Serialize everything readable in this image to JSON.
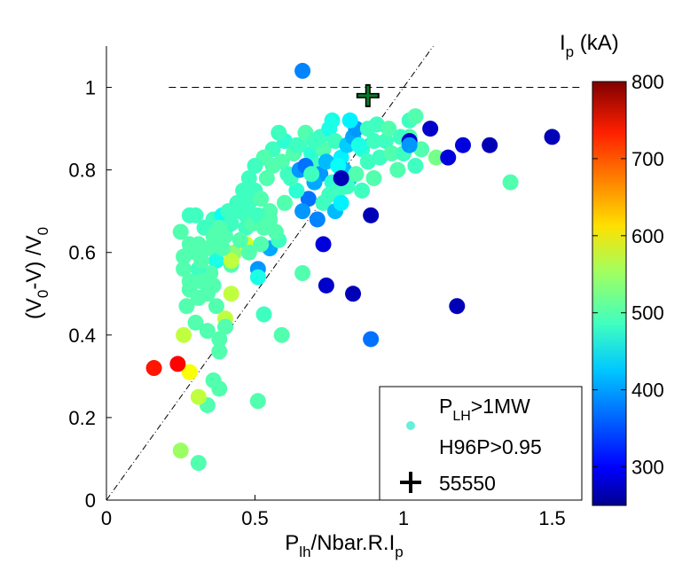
{
  "chart_data": {
    "type": "scatter",
    "xlabel": {
      "base": "P",
      "sub1": "lh",
      "mid": "/Nbar.R.I",
      "sub2": "p"
    },
    "ylabel": {
      "p1": "(V",
      "s1": "0",
      "p2": "-V) /V",
      "s2": "0"
    },
    "xlim": [
      0,
      1.6
    ],
    "ylim": [
      0,
      1.1
    ],
    "xticks": [
      0,
      0.5,
      1,
      1.5
    ],
    "xtick_labels": [
      "0",
      "0.5",
      "1",
      "1.5"
    ],
    "yticks": [
      0,
      0.2,
      0.4,
      0.6,
      0.8,
      1
    ],
    "ytick_labels": [
      "0",
      "0.2",
      "0.4",
      "0.6",
      "0.8",
      "1"
    ],
    "grid": false,
    "colorbar": {
      "title_base": "I",
      "title_sub": "p",
      "title_unit": " (kA)",
      "range": [
        250,
        800
      ],
      "ticks": [
        300,
        400,
        500,
        600,
        700,
        800
      ],
      "tick_labels": [
        "300",
        "400",
        "500",
        "600",
        "700",
        "800"
      ],
      "colormap": "jet"
    },
    "reference_lines": [
      {
        "type": "horizontal",
        "y": 1.0,
        "x_from": 0.21,
        "style": "dashed"
      },
      {
        "type": "diagonal",
        "from": [
          0,
          0
        ],
        "to": [
          1.1,
          1.1
        ],
        "style": "dash-dot"
      }
    ],
    "legend": {
      "position": "bottom-right",
      "entries": [
        {
          "marker": "circle",
          "color": "#66f0d8",
          "line1_base": "P",
          "line1_sub": "LH",
          "line1_rest": ">1MW",
          "line2": "H96P>0.95"
        },
        {
          "marker": "plus",
          "label": "55550"
        }
      ]
    },
    "special_point": {
      "label": "55550",
      "x": 0.88,
      "y": 0.98,
      "marker": "plus",
      "color": "#0a7a2a"
    },
    "points": [
      [
        0.66,
        1.04,
        390
      ],
      [
        0.28,
        0.69,
        490
      ],
      [
        0.3,
        0.69,
        490
      ],
      [
        0.36,
        0.68,
        490
      ],
      [
        0.39,
        0.69,
        460
      ],
      [
        0.33,
        0.66,
        490
      ],
      [
        0.25,
        0.65,
        500
      ],
      [
        0.31,
        0.62,
        500
      ],
      [
        0.37,
        0.61,
        500
      ],
      [
        0.4,
        0.64,
        500
      ],
      [
        0.42,
        0.67,
        490
      ],
      [
        0.45,
        0.7,
        490
      ],
      [
        0.48,
        0.72,
        490
      ],
      [
        0.5,
        0.75,
        490
      ],
      [
        0.52,
        0.73,
        500
      ],
      [
        0.55,
        0.7,
        500
      ],
      [
        0.47,
        0.66,
        490
      ],
      [
        0.43,
        0.6,
        530
      ],
      [
        0.42,
        0.57,
        500
      ],
      [
        0.37,
        0.58,
        470
      ],
      [
        0.35,
        0.55,
        500
      ],
      [
        0.31,
        0.56,
        490
      ],
      [
        0.26,
        0.56,
        500
      ],
      [
        0.28,
        0.51,
        500
      ],
      [
        0.31,
        0.49,
        500
      ],
      [
        0.34,
        0.5,
        500
      ],
      [
        0.37,
        0.47,
        500
      ],
      [
        0.27,
        0.47,
        500
      ],
      [
        0.3,
        0.43,
        500
      ],
      [
        0.34,
        0.41,
        500
      ],
      [
        0.38,
        0.36,
        500
      ],
      [
        0.36,
        0.29,
        500
      ],
      [
        0.38,
        0.27,
        500
      ],
      [
        0.34,
        0.23,
        500
      ],
      [
        0.31,
        0.25,
        560
      ],
      [
        0.28,
        0.31,
        590
      ],
      [
        0.26,
        0.4,
        560
      ],
      [
        0.25,
        0.12,
        540
      ],
      [
        0.31,
        0.09,
        500
      ],
      [
        0.16,
        0.32,
        720
      ],
      [
        0.24,
        0.33,
        730
      ],
      [
        0.42,
        0.5,
        560
      ],
      [
        0.4,
        0.44,
        560
      ],
      [
        0.42,
        0.58,
        560
      ],
      [
        0.47,
        0.62,
        570
      ],
      [
        0.51,
        0.56,
        400
      ],
      [
        0.51,
        0.54,
        470
      ],
      [
        0.55,
        0.61,
        410
      ],
      [
        0.58,
        0.63,
        490
      ],
      [
        0.53,
        0.45,
        490
      ],
      [
        0.59,
        0.4,
        500
      ],
      [
        0.51,
        0.24,
        500
      ],
      [
        0.66,
        0.55,
        500
      ],
      [
        0.56,
        0.85,
        490
      ],
      [
        0.59,
        0.82,
        500
      ],
      [
        0.61,
        0.79,
        490
      ],
      [
        0.63,
        0.84,
        500
      ],
      [
        0.65,
        0.86,
        490
      ],
      [
        0.67,
        0.89,
        500
      ],
      [
        0.69,
        0.84,
        480
      ],
      [
        0.71,
        0.81,
        490
      ],
      [
        0.73,
        0.85,
        500
      ],
      [
        0.72,
        0.88,
        490
      ],
      [
        0.75,
        0.9,
        470
      ],
      [
        0.77,
        0.87,
        490
      ],
      [
        0.79,
        0.83,
        450
      ],
      [
        0.81,
        0.86,
        430
      ],
      [
        0.83,
        0.88,
        410
      ],
      [
        0.84,
        0.9,
        400
      ],
      [
        0.86,
        0.85,
        480
      ],
      [
        0.88,
        0.82,
        490
      ],
      [
        0.9,
        0.78,
        500
      ],
      [
        0.92,
        0.83,
        490
      ],
      [
        0.94,
        0.87,
        490
      ],
      [
        0.96,
        0.84,
        500
      ],
      [
        0.98,
        0.8,
        500
      ],
      [
        1.0,
        0.84,
        490
      ],
      [
        1.02,
        0.88,
        500
      ],
      [
        1.04,
        0.81,
        490
      ],
      [
        1.06,
        0.85,
        500
      ],
      [
        1.02,
        0.92,
        490
      ],
      [
        0.88,
        0.9,
        490
      ],
      [
        0.9,
        0.87,
        490
      ],
      [
        0.72,
        0.79,
        400
      ],
      [
        0.74,
        0.82,
        420
      ],
      [
        0.76,
        0.77,
        480
      ],
      [
        0.78,
        0.75,
        490
      ],
      [
        0.8,
        0.8,
        420
      ],
      [
        0.82,
        0.78,
        430
      ],
      [
        0.7,
        0.77,
        410
      ],
      [
        0.68,
        0.73,
        380
      ],
      [
        0.66,
        0.7,
        400
      ],
      [
        0.64,
        0.75,
        480
      ],
      [
        0.62,
        0.78,
        490
      ],
      [
        0.6,
        0.72,
        500
      ],
      [
        0.65,
        0.8,
        400
      ],
      [
        0.67,
        0.81,
        380
      ],
      [
        0.69,
        0.79,
        490
      ],
      [
        0.71,
        0.68,
        390
      ],
      [
        0.73,
        0.72,
        490
      ],
      [
        0.75,
        0.74,
        490
      ],
      [
        0.77,
        0.7,
        420
      ],
      [
        0.79,
        0.72,
        450
      ],
      [
        0.81,
        0.76,
        490
      ],
      [
        0.84,
        0.79,
        500
      ],
      [
        0.86,
        0.75,
        490
      ],
      [
        0.6,
        0.87,
        480
      ],
      [
        0.58,
        0.89,
        490
      ],
      [
        0.56,
        0.81,
        500
      ],
      [
        0.54,
        0.78,
        500
      ],
      [
        0.53,
        0.83,
        500
      ],
      [
        0.5,
        0.81,
        490
      ],
      [
        0.48,
        0.78,
        490
      ],
      [
        0.46,
        0.75,
        490
      ],
      [
        0.44,
        0.72,
        490
      ],
      [
        0.41,
        0.7,
        490
      ],
      [
        0.38,
        0.66,
        500
      ],
      [
        0.36,
        0.64,
        500
      ],
      [
        0.34,
        0.61,
        500
      ],
      [
        0.32,
        0.58,
        500
      ],
      [
        0.3,
        0.6,
        500
      ],
      [
        0.28,
        0.62,
        500
      ],
      [
        0.45,
        0.63,
        500
      ],
      [
        0.47,
        0.69,
        490
      ],
      [
        0.49,
        0.67,
        500
      ],
      [
        0.51,
        0.69,
        490
      ],
      [
        0.53,
        0.66,
        500
      ],
      [
        0.55,
        0.68,
        500
      ],
      [
        0.57,
        0.65,
        500
      ],
      [
        0.52,
        0.62,
        500
      ],
      [
        0.48,
        0.6,
        500
      ],
      [
        0.38,
        0.39,
        500
      ],
      [
        0.4,
        0.42,
        500
      ],
      [
        0.32,
        0.53,
        500
      ],
      [
        0.28,
        0.53,
        500
      ],
      [
        0.36,
        0.52,
        500
      ],
      [
        0.26,
        0.59,
        500
      ],
      [
        0.39,
        0.61,
        500
      ],
      [
        0.64,
        0.86,
        490
      ],
      [
        0.7,
        0.87,
        490
      ],
      [
        0.76,
        0.92,
        470
      ],
      [
        0.82,
        0.92,
        450
      ],
      [
        0.85,
        0.86,
        470
      ],
      [
        0.91,
        0.91,
        490
      ],
      [
        0.95,
        0.9,
        500
      ],
      [
        0.99,
        0.88,
        490
      ],
      [
        1.04,
        0.93,
        500
      ],
      [
        1.11,
        0.83,
        520
      ],
      [
        1.36,
        0.77,
        500
      ],
      [
        0.78,
        0.81,
        460
      ],
      [
        0.79,
        0.78,
        280
      ],
      [
        0.73,
        0.62,
        300
      ],
      [
        0.74,
        0.52,
        290
      ],
      [
        0.83,
        0.5,
        280
      ],
      [
        0.89,
        0.69,
        280
      ],
      [
        1.02,
        0.87,
        290
      ],
      [
        1.09,
        0.9,
        290
      ],
      [
        1.15,
        0.83,
        300
      ],
      [
        1.2,
        0.86,
        300
      ],
      [
        1.29,
        0.86,
        280
      ],
      [
        1.5,
        0.88,
        280
      ],
      [
        1.18,
        0.47,
        280
      ],
      [
        0.89,
        0.39,
        380
      ],
      [
        1.02,
        0.86,
        400
      ]
    ]
  }
}
